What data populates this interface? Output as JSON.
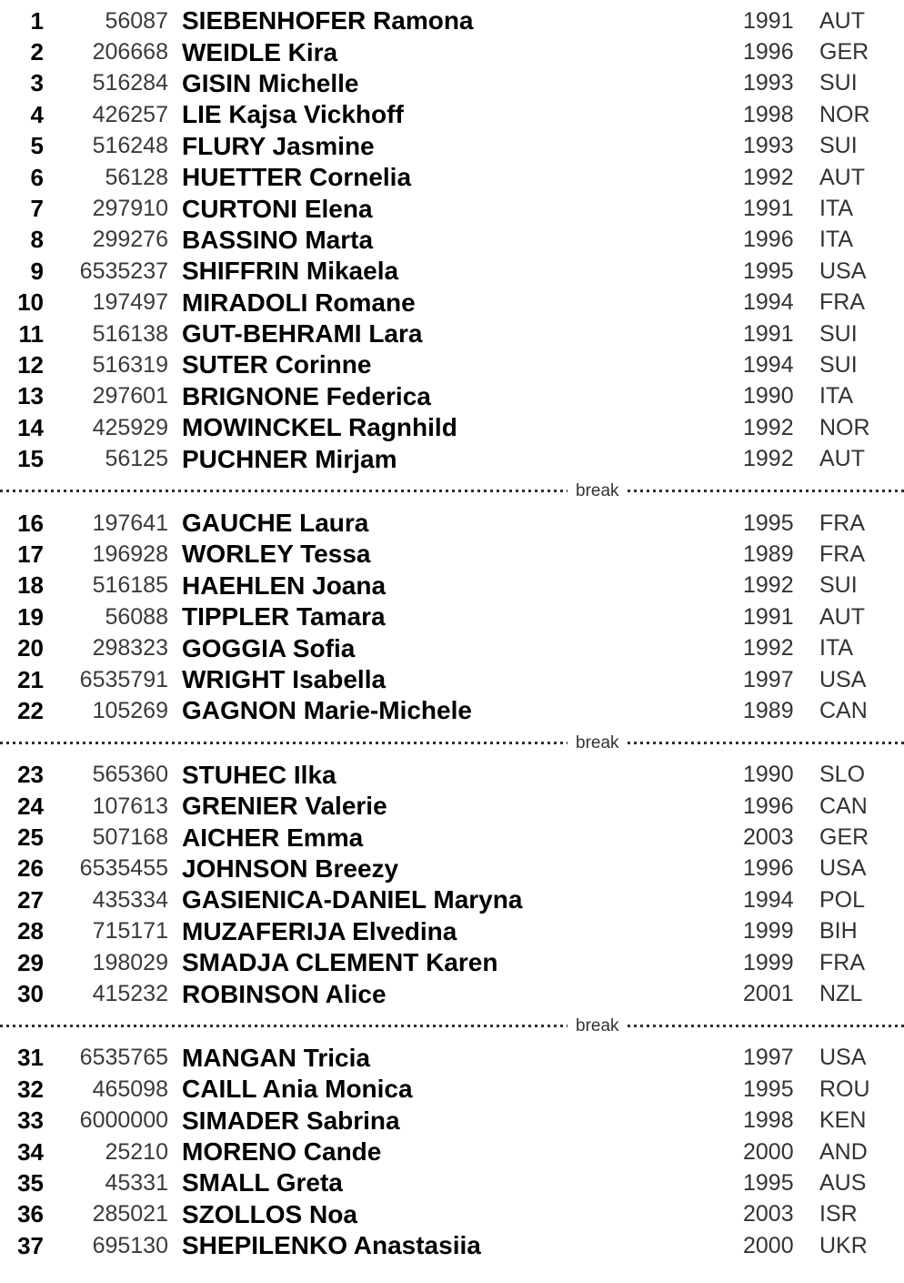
{
  "break_label": "break",
  "colors": {
    "text_bold": "#000000",
    "text_regular": "#333333",
    "separator": "#2e2e2e",
    "background": "#ffffff"
  },
  "sections": [
    {
      "rows": [
        {
          "rank": "1",
          "code": "56087",
          "name": "SIEBENHOFER Ramona",
          "year": "1991",
          "nation": "AUT"
        },
        {
          "rank": "2",
          "code": "206668",
          "name": "WEIDLE Kira",
          "year": "1996",
          "nation": "GER"
        },
        {
          "rank": "3",
          "code": "516284",
          "name": "GISIN Michelle",
          "year": "1993",
          "nation": "SUI"
        },
        {
          "rank": "4",
          "code": "426257",
          "name": "LIE Kajsa Vickhoff",
          "year": "1998",
          "nation": "NOR"
        },
        {
          "rank": "5",
          "code": "516248",
          "name": "FLURY Jasmine",
          "year": "1993",
          "nation": "SUI"
        },
        {
          "rank": "6",
          "code": "56128",
          "name": "HUETTER Cornelia",
          "year": "1992",
          "nation": "AUT"
        },
        {
          "rank": "7",
          "code": "297910",
          "name": "CURTONI Elena",
          "year": "1991",
          "nation": "ITA"
        },
        {
          "rank": "8",
          "code": "299276",
          "name": "BASSINO Marta",
          "year": "1996",
          "nation": "ITA"
        },
        {
          "rank": "9",
          "code": "6535237",
          "name": "SHIFFRIN Mikaela",
          "year": "1995",
          "nation": "USA"
        },
        {
          "rank": "10",
          "code": "197497",
          "name": "MIRADOLI Romane",
          "year": "1994",
          "nation": "FRA"
        },
        {
          "rank": "11",
          "code": "516138",
          "name": "GUT-BEHRAMI Lara",
          "year": "1991",
          "nation": "SUI"
        },
        {
          "rank": "12",
          "code": "516319",
          "name": "SUTER Corinne",
          "year": "1994",
          "nation": "SUI"
        },
        {
          "rank": "13",
          "code": "297601",
          "name": "BRIGNONE Federica",
          "year": "1990",
          "nation": "ITA"
        },
        {
          "rank": "14",
          "code": "425929",
          "name": "MOWINCKEL Ragnhild",
          "year": "1992",
          "nation": "NOR"
        },
        {
          "rank": "15",
          "code": "56125",
          "name": "PUCHNER Mirjam",
          "year": "1992",
          "nation": "AUT"
        }
      ]
    },
    {
      "rows": [
        {
          "rank": "16",
          "code": "197641",
          "name": "GAUCHE Laura",
          "year": "1995",
          "nation": "FRA"
        },
        {
          "rank": "17",
          "code": "196928",
          "name": "WORLEY Tessa",
          "year": "1989",
          "nation": "FRA"
        },
        {
          "rank": "18",
          "code": "516185",
          "name": "HAEHLEN Joana",
          "year": "1992",
          "nation": "SUI"
        },
        {
          "rank": "19",
          "code": "56088",
          "name": "TIPPLER Tamara",
          "year": "1991",
          "nation": "AUT"
        },
        {
          "rank": "20",
          "code": "298323",
          "name": "GOGGIA Sofia",
          "year": "1992",
          "nation": "ITA"
        },
        {
          "rank": "21",
          "code": "6535791",
          "name": "WRIGHT Isabella",
          "year": "1997",
          "nation": "USA"
        },
        {
          "rank": "22",
          "code": "105269",
          "name": "GAGNON Marie-Michele",
          "year": "1989",
          "nation": "CAN"
        }
      ]
    },
    {
      "rows": [
        {
          "rank": "23",
          "code": "565360",
          "name": "STUHEC Ilka",
          "year": "1990",
          "nation": "SLO"
        },
        {
          "rank": "24",
          "code": "107613",
          "name": "GRENIER Valerie",
          "year": "1996",
          "nation": "CAN"
        },
        {
          "rank": "25",
          "code": "507168",
          "name": "AICHER Emma",
          "year": "2003",
          "nation": "GER"
        },
        {
          "rank": "26",
          "code": "6535455",
          "name": "JOHNSON Breezy",
          "year": "1996",
          "nation": "USA"
        },
        {
          "rank": "27",
          "code": "435334",
          "name": "GASIENICA-DANIEL Maryna",
          "year": "1994",
          "nation": "POL"
        },
        {
          "rank": "28",
          "code": "715171",
          "name": "MUZAFERIJA Elvedina",
          "year": "1999",
          "nation": "BIH"
        },
        {
          "rank": "29",
          "code": "198029",
          "name": "SMADJA CLEMENT Karen",
          "year": "1999",
          "nation": "FRA"
        },
        {
          "rank": "30",
          "code": "415232",
          "name": "ROBINSON Alice",
          "year": "2001",
          "nation": "NZL"
        }
      ]
    },
    {
      "rows": [
        {
          "rank": "31",
          "code": "6535765",
          "name": "MANGAN Tricia",
          "year": "1997",
          "nation": "USA"
        },
        {
          "rank": "32",
          "code": "465098",
          "name": "CAILL Ania Monica",
          "year": "1995",
          "nation": "ROU"
        },
        {
          "rank": "33",
          "code": "6000000",
          "name": "SIMADER Sabrina",
          "year": "1998",
          "nation": "KEN"
        },
        {
          "rank": "34",
          "code": "25210",
          "name": "MORENO Cande",
          "year": "2000",
          "nation": "AND"
        },
        {
          "rank": "35",
          "code": "45331",
          "name": "SMALL Greta",
          "year": "1995",
          "nation": "AUS"
        },
        {
          "rank": "36",
          "code": "285021",
          "name": "SZOLLOS Noa",
          "year": "2003",
          "nation": "ISR"
        },
        {
          "rank": "37",
          "code": "695130",
          "name": "SHEPILENKO Anastasiia",
          "year": "2000",
          "nation": "UKR"
        }
      ]
    }
  ]
}
